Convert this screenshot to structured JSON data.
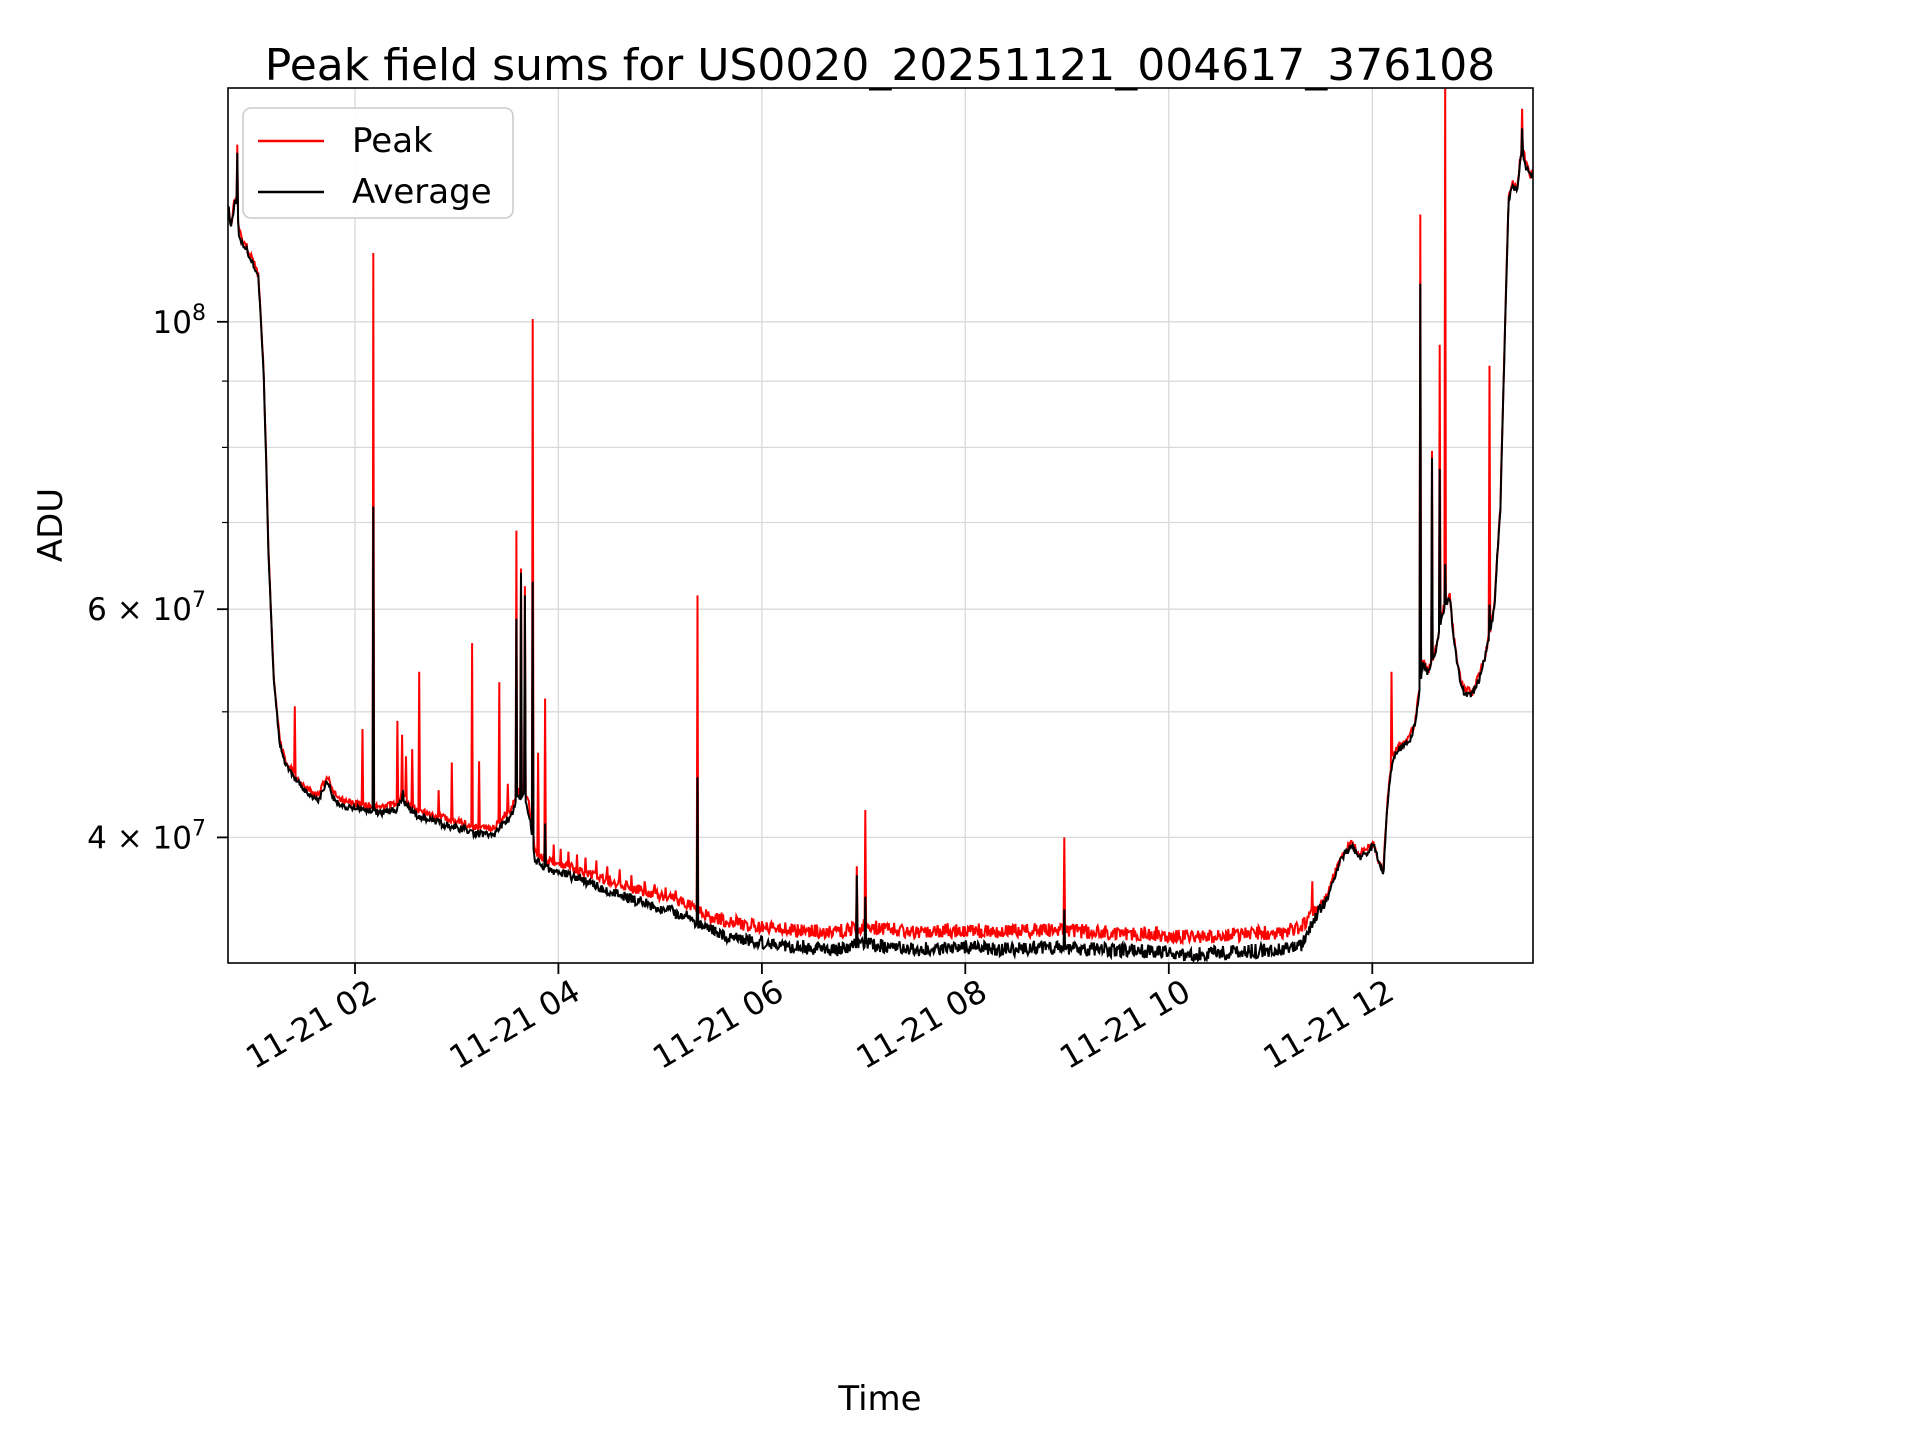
{
  "chart_data": {
    "type": "line",
    "title": "Peak field sums for US0020_20251121_004617_376108",
    "xlabel": "Time",
    "ylabel": "ADU",
    "y_scale": "log",
    "x_unit": "time of day on 2025-11-21, decimal hours",
    "x_range": [
      0.752,
      13.58
    ],
    "y_range": [
      32000000.0,
      151500000.0
    ],
    "grid": true,
    "legend_position": "upper left",
    "x_ticks": [
      {
        "value": 2,
        "label": "11-21 02"
      },
      {
        "value": 4,
        "label": "11-21 04"
      },
      {
        "value": 6,
        "label": "11-21 06"
      },
      {
        "value": 8,
        "label": "11-21 08"
      },
      {
        "value": 10,
        "label": "11-21 10"
      },
      {
        "value": 12,
        "label": "11-21 12"
      }
    ],
    "y_ticks": [
      {
        "value": 100000000.0,
        "base": "10",
        "exp": "8"
      },
      {
        "value": 60000000.0,
        "base": "6 × 10",
        "exp": "7"
      },
      {
        "value": 40000000.0,
        "base": "4 × 10",
        "exp": "7"
      }
    ],
    "y_grid_values": [
      40000000.0,
      50000000.0,
      60000000.0,
      70000000.0,
      80000000.0,
      90000000.0,
      100000000.0
    ],
    "series": [
      {
        "name": "Peak",
        "color": "#ff0000"
      },
      {
        "name": "Average",
        "color": "#000000"
      }
    ],
    "avg_baseline": [
      [
        0.752,
        123000000.0
      ],
      [
        0.78,
        118000000.0
      ],
      [
        0.8,
        121000000.0
      ],
      [
        0.83,
        125000000.0
      ],
      [
        0.86,
        117000000.0
      ],
      [
        0.9,
        115000000.0
      ],
      [
        0.95,
        113000000.0
      ],
      [
        1.0,
        111000000.0
      ],
      [
        1.05,
        108000000.0
      ],
      [
        1.1,
        92000000.0
      ],
      [
        1.15,
        66000000.0
      ],
      [
        1.2,
        53000000.0
      ],
      [
        1.26,
        47200000.0
      ],
      [
        1.32,
        45500000.0
      ],
      [
        1.4,
        44500000.0
      ],
      [
        1.5,
        43500000.0
      ],
      [
        1.58,
        42900000.0
      ],
      [
        1.64,
        42700000.0
      ],
      [
        1.7,
        43800000.0
      ],
      [
        1.74,
        44200000.0
      ],
      [
        1.78,
        43000000.0
      ],
      [
        1.85,
        42400000.0
      ],
      [
        1.95,
        42200000.0
      ],
      [
        2.1,
        42000000.0
      ],
      [
        2.25,
        41800000.0
      ],
      [
        2.4,
        42000000.0
      ],
      [
        2.46,
        42800000.0
      ],
      [
        2.52,
        42200000.0
      ],
      [
        2.6,
        41600000.0
      ],
      [
        2.75,
        41200000.0
      ],
      [
        2.9,
        40900000.0
      ],
      [
        3.05,
        40600000.0
      ],
      [
        3.2,
        40300000.0
      ],
      [
        3.35,
        40100000.0
      ],
      [
        3.45,
        41000000.0
      ],
      [
        3.53,
        41400000.0
      ],
      [
        3.6,
        42800000.0
      ],
      [
        3.66,
        43200000.0
      ],
      [
        3.72,
        41500000.0
      ],
      [
        3.77,
        38500000.0
      ],
      [
        3.85,
        37900000.0
      ],
      [
        3.95,
        37700000.0
      ],
      [
        4.1,
        37400000.0
      ],
      [
        4.3,
        36900000.0
      ],
      [
        4.5,
        36400000.0
      ],
      [
        4.7,
        35900000.0
      ],
      [
        4.9,
        35500000.0
      ],
      [
        5.1,
        35100000.0
      ],
      [
        5.25,
        34800000.0
      ],
      [
        5.35,
        34300000.0
      ],
      [
        5.5,
        33900000.0
      ],
      [
        5.7,
        33500000.0
      ],
      [
        5.9,
        33300000.0
      ],
      [
        6.15,
        33100000.0
      ],
      [
        6.45,
        32900000.0
      ],
      [
        6.75,
        32800000.0
      ],
      [
        7.0,
        33100000.0
      ],
      [
        7.25,
        32900000.0
      ],
      [
        7.6,
        32800000.0
      ],
      [
        8.0,
        32900000.0
      ],
      [
        8.4,
        32800000.0
      ],
      [
        8.8,
        32900000.0
      ],
      [
        9.2,
        32800000.0
      ],
      [
        9.6,
        32700000.0
      ],
      [
        10.0,
        32600000.0
      ],
      [
        10.3,
        32500000.0
      ],
      [
        10.6,
        32600000.0
      ],
      [
        10.9,
        32700000.0
      ],
      [
        11.15,
        32800000.0
      ],
      [
        11.3,
        33000000.0
      ],
      [
        11.4,
        34200000.0
      ],
      [
        11.48,
        35200000.0
      ],
      [
        11.56,
        35800000.0
      ],
      [
        11.64,
        37600000.0
      ],
      [
        11.72,
        38800000.0
      ],
      [
        11.8,
        39400000.0
      ],
      [
        11.87,
        38600000.0
      ],
      [
        11.95,
        39000000.0
      ],
      [
        12.02,
        39400000.0
      ],
      [
        12.07,
        38000000.0
      ],
      [
        12.11,
        37600000.0
      ],
      [
        12.15,
        42500000.0
      ],
      [
        12.2,
        46000000.0
      ],
      [
        12.28,
        47000000.0
      ],
      [
        12.36,
        47400000.0
      ],
      [
        12.42,
        48800000.0
      ],
      [
        12.45,
        51000000.0
      ],
      [
        12.5,
        54500000.0
      ],
      [
        12.55,
        53500000.0
      ],
      [
        12.62,
        55500000.0
      ],
      [
        12.68,
        59000000.0
      ],
      [
        12.72,
        60500000.0
      ],
      [
        12.76,
        61500000.0
      ],
      [
        12.8,
        57000000.0
      ],
      [
        12.85,
        53500000.0
      ],
      [
        12.9,
        51800000.0
      ],
      [
        12.98,
        51500000.0
      ],
      [
        13.05,
        53000000.0
      ],
      [
        13.12,
        55500000.0
      ],
      [
        13.2,
        60000000.0
      ],
      [
        13.26,
        72000000.0
      ],
      [
        13.3,
        95000000.0
      ],
      [
        13.34,
        124000000.0
      ],
      [
        13.38,
        128000000.0
      ],
      [
        13.42,
        126000000.0
      ],
      [
        13.47,
        136000000.0
      ],
      [
        13.52,
        131000000.0
      ],
      [
        13.56,
        129000000.0
      ],
      [
        13.58,
        131000000.0
      ]
    ],
    "peak_ratio": [
      [
        0.752,
        1.004
      ],
      [
        1.3,
        1.008
      ],
      [
        3.5,
        1.012
      ],
      [
        4.5,
        1.018
      ],
      [
        5.5,
        1.025
      ],
      [
        6.8,
        1.032
      ],
      [
        11.3,
        1.032
      ],
      [
        11.5,
        1.006
      ],
      [
        13.58,
        1.004
      ]
    ],
    "noise_level": [
      [
        0.752,
        0.01
      ],
      [
        1.1,
        0.005
      ],
      [
        3.5,
        0.007
      ],
      [
        5.5,
        0.011
      ],
      [
        7.0,
        0.013
      ],
      [
        11.3,
        0.013
      ],
      [
        11.6,
        0.007
      ],
      [
        12.4,
        0.006
      ],
      [
        13.58,
        0.008
      ]
    ],
    "peak_spikes": [
      [
        0.84,
        137000000.0
      ],
      [
        1.41,
        50500000.0
      ],
      [
        2.07,
        48500000.0
      ],
      [
        2.18,
        113000000.0
      ],
      [
        2.42,
        49200000.0
      ],
      [
        2.46,
        48000000.0
      ],
      [
        2.5,
        46200000.0
      ],
      [
        2.56,
        46800000.0
      ],
      [
        2.63,
        53700000.0
      ],
      [
        2.82,
        43500000.0
      ],
      [
        2.95,
        45700000.0
      ],
      [
        3.15,
        56500000.0
      ],
      [
        3.22,
        45800000.0
      ],
      [
        3.42,
        52700000.0
      ],
      [
        3.5,
        44000000.0
      ],
      [
        3.59,
        69000000.0
      ],
      [
        3.63,
        64500000.0
      ],
      [
        3.67,
        62500000.0
      ],
      [
        3.75,
        100500000.0
      ],
      [
        3.8,
        46500000.0
      ],
      [
        3.87,
        51200000.0
      ],
      [
        3.95,
        39500000.0
      ],
      [
        4.02,
        39200000.0
      ],
      [
        4.1,
        39000000.0
      ],
      [
        4.18,
        38800000.0
      ],
      [
        4.27,
        38600000.0
      ],
      [
        4.37,
        38400000.0
      ],
      [
        4.48,
        38000000.0
      ],
      [
        4.6,
        37800000.0
      ],
      [
        4.72,
        37400000.0
      ],
      [
        4.85,
        37000000.0
      ],
      [
        4.95,
        36800000.0
      ],
      [
        5.05,
        36600000.0
      ],
      [
        5.15,
        36400000.0
      ],
      [
        5.37,
        61500000.0
      ],
      [
        5.45,
        35200000.0
      ],
      [
        5.6,
        35000000.0
      ],
      [
        5.75,
        34800000.0
      ],
      [
        5.9,
        34600000.0
      ],
      [
        6.05,
        34400000.0
      ],
      [
        6.93,
        38000000.0
      ],
      [
        7.02,
        42000000.0
      ],
      [
        8.97,
        40000000.0
      ],
      [
        11.41,
        37000000.0
      ],
      [
        12.19,
        53700000.0
      ],
      [
        12.47,
        121000000.0
      ],
      [
        12.59,
        79500000.0
      ],
      [
        12.66,
        96000000.0
      ],
      [
        12.72,
        155000000.0
      ],
      [
        13.15,
        92500000.0
      ],
      [
        13.47,
        146000000.0
      ]
    ],
    "avg_spikes": [
      [
        0.84,
        135000000.0
      ],
      [
        2.18,
        72000000.0
      ],
      [
        2.47,
        43500000.0
      ],
      [
        3.59,
        59000000.0
      ],
      [
        3.63,
        64000000.0
      ],
      [
        3.67,
        61500000.0
      ],
      [
        3.75,
        63000000.0
      ],
      [
        3.87,
        41000000.0
      ],
      [
        5.37,
        44500000.0
      ],
      [
        6.93,
        37400000.0
      ],
      [
        7.02,
        36000000.0
      ],
      [
        8.97,
        35200000.0
      ],
      [
        12.47,
        107000000.0
      ],
      [
        12.59,
        78500000.0
      ],
      [
        12.66,
        77000000.0
      ],
      [
        12.72,
        65000000.0
      ],
      [
        13.15,
        60500000.0
      ],
      [
        13.47,
        141000000.0
      ]
    ]
  }
}
